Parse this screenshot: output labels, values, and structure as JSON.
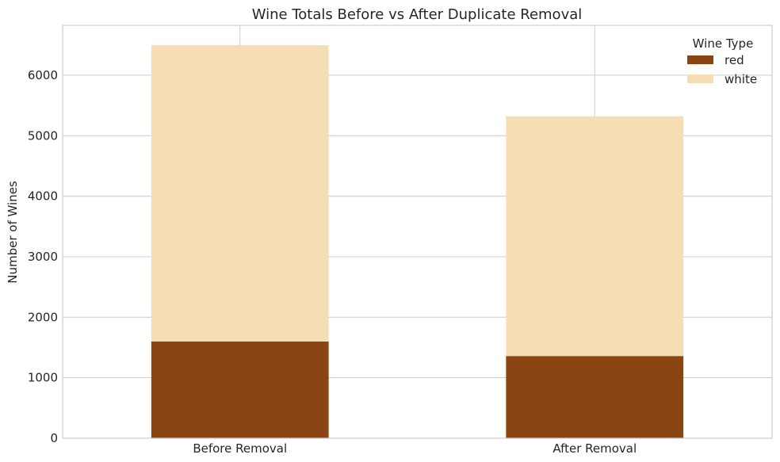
{
  "chart_data": {
    "type": "bar",
    "stacked": true,
    "title": "Wine Totals Before vs After Duplicate Removal",
    "xlabel": "",
    "ylabel": "Number of Wines",
    "categories": [
      "Before Removal",
      "After Removal"
    ],
    "series": [
      {
        "name": "red",
        "values": [
          1599,
          1359
        ],
        "color": "#8b4513"
      },
      {
        "name": "white",
        "values": [
          4898,
          3961
        ],
        "color": "#f5deb3"
      }
    ],
    "ylim": [
      0,
      6824
    ],
    "yticks": [
      0,
      1000,
      2000,
      3000,
      4000,
      5000,
      6000
    ],
    "grid": true,
    "legend": {
      "title": "Wine Type",
      "placement": "top-right"
    }
  }
}
